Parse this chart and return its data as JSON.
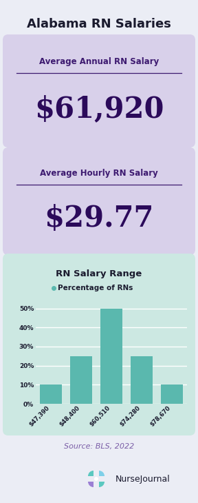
{
  "title": "Alabama RN Salaries",
  "title_color": "#1a1a2e",
  "bg_color": "#ebedf5",
  "card1_bg": "#d8d0ea",
  "card2_bg": "#d8d0ea",
  "chart_bg": "#cce8e2",
  "card1_label": "Average Annual RN Salary",
  "card1_value": "$61,920",
  "card2_label": "Average Hourly RN Salary",
  "card2_value": "$29.77",
  "label_color": "#3d1a70",
  "value_color": "#2b0a5a",
  "underline_color": "#3d1a70",
  "chart_title": "RN Salary Range",
  "chart_subtitle": "Percentage of RNs",
  "chart_title_color": "#1a1a2e",
  "bar_color": "#5ab8ae",
  "bar_categories": [
    "$47,390",
    "$48,400",
    "$60,510",
    "$74,280",
    "$78,670"
  ],
  "bar_values": [
    10,
    25,
    50,
    25,
    10
  ],
  "ytick_labels": [
    "0%",
    "10%",
    "20%",
    "30%",
    "40%",
    "50%"
  ],
  "source_text": "Source: BLS, 2022",
  "source_color": "#7b5ea7",
  "logo_text": "NurseJournal",
  "logo_color": "#1a1a2e",
  "teal_color": "#5bbcb0",
  "blue_color": "#5b9bd5",
  "purple_color": "#7b5ea7"
}
